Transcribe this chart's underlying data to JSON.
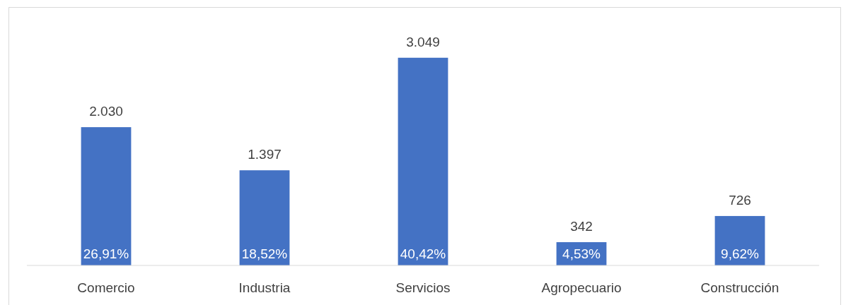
{
  "chart_data": {
    "type": "bar",
    "categories": [
      "Comercio",
      "Industria",
      "Servicios",
      "Agropecuario",
      "Construcción"
    ],
    "values": [
      2030,
      1397,
      3049,
      342,
      726
    ],
    "value_labels": [
      "2.030",
      "1.397",
      "3.049",
      "342",
      "726"
    ],
    "color": "#4472c4",
    "annotations": [
      {
        "text": "26,91%",
        "x": "Comercio",
        "y": 0
      },
      {
        "text": "18,52%",
        "x": "Industria",
        "y": 0
      },
      {
        "text": "40,42%",
        "x": "Servicios",
        "y": 0
      },
      {
        "text": "4,53%",
        "x": "Agropecuario",
        "y": 0
      },
      {
        "text": "9,62%",
        "x": "Construcción",
        "y": 0
      }
    ]
  }
}
